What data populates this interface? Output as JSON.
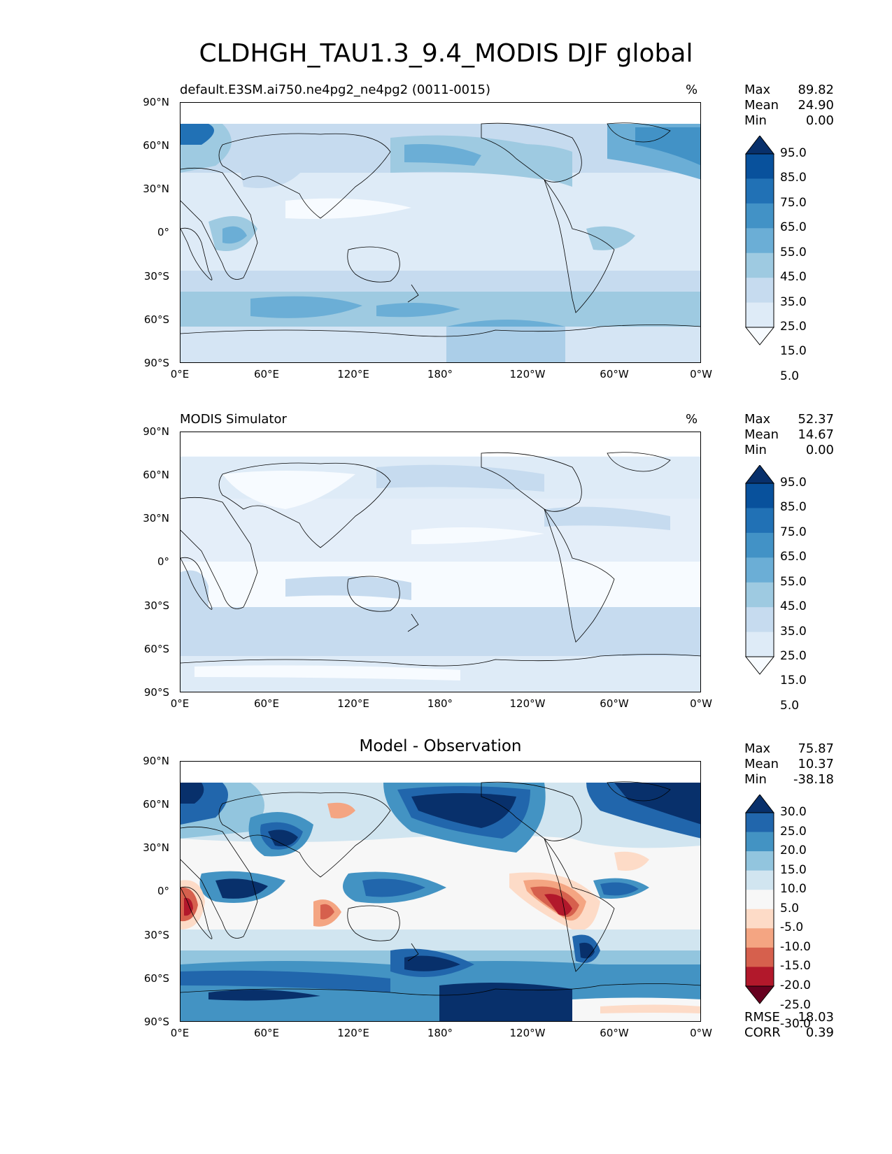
{
  "figure": {
    "title": "CLDHGH_TAU1.3_9.4_MODIS DJF global"
  },
  "axes": {
    "lat_labels": [
      "90°N",
      "60°N",
      "30°N",
      "0°",
      "30°S",
      "60°S",
      "90°S"
    ],
    "lon_labels": [
      "0°E",
      "60°E",
      "120°E",
      "180°",
      "120°W",
      "60°W",
      "0°W"
    ]
  },
  "panels": [
    {
      "id": "model",
      "title": "default.E3SM.ai750.ne4pg2_ne4pg2 (0011-0015)",
      "units": "%",
      "stats": [
        {
          "label": "Max",
          "value": "89.82"
        },
        {
          "label": "Mean",
          "value": "24.90"
        },
        {
          "label": "Min",
          "value": "0.00"
        }
      ],
      "colorbar": {
        "labels": [
          "95.0",
          "85.0",
          "75.0",
          "65.0",
          "55.0",
          "45.0",
          "35.0",
          "25.0",
          "15.0",
          "5.0"
        ],
        "colors": [
          "#08306b",
          "#08519c",
          "#2171b5",
          "#4292c6",
          "#6baed6",
          "#9ecae1",
          "#c6dbef",
          "#deebf7",
          "#f7fbff"
        ]
      }
    },
    {
      "id": "obs",
      "title": "MODIS Simulator",
      "units": "%",
      "stats": [
        {
          "label": "Max",
          "value": "52.37"
        },
        {
          "label": "Mean",
          "value": "14.67"
        },
        {
          "label": "Min",
          "value": "0.00"
        }
      ],
      "colorbar": {
        "labels": [
          "95.0",
          "85.0",
          "75.0",
          "65.0",
          "55.0",
          "45.0",
          "35.0",
          "25.0",
          "15.0",
          "5.0"
        ],
        "colors": [
          "#08306b",
          "#08519c",
          "#2171b5",
          "#4292c6",
          "#6baed6",
          "#9ecae1",
          "#c6dbef",
          "#deebf7",
          "#f7fbff"
        ]
      }
    },
    {
      "id": "diff",
      "title": "Model - Observation",
      "units": "",
      "stats": [
        {
          "label": "Max",
          "value": "75.87"
        },
        {
          "label": "Mean",
          "value": "10.37"
        },
        {
          "label": "Min",
          "value": "-38.18"
        }
      ],
      "extra_stats": [
        {
          "label": "RMSE",
          "value": "18.03"
        },
        {
          "label": "CORR",
          "value": "0.39"
        }
      ],
      "colorbar": {
        "labels": [
          "30.0",
          "25.0",
          "20.0",
          "15.0",
          "10.0",
          "5.0",
          "-5.0",
          "-10.0",
          "-15.0",
          "-20.0",
          "-25.0",
          "-30.0"
        ],
        "colors": [
          "#08306b",
          "#2166ac",
          "#4393c3",
          "#92c5de",
          "#d1e5f0",
          "#f7f7f7",
          "#fddbc7",
          "#f4a582",
          "#d6604d",
          "#b2182b",
          "#67001f"
        ]
      }
    }
  ]
}
